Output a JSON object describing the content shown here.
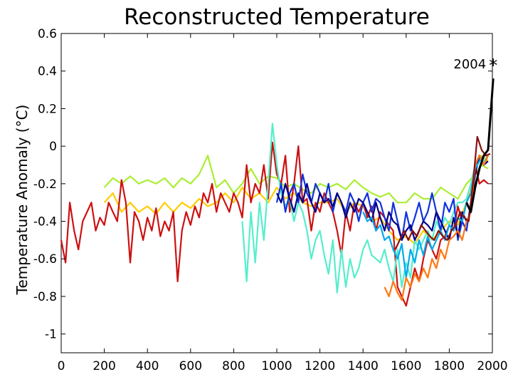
{
  "chart_data": {
    "type": "line",
    "title": "Reconstructed Temperature",
    "xlabel": "",
    "ylabel": "Temperature Anomaly (°C)",
    "xlim": [
      0,
      2000
    ],
    "ylim": [
      -1.1,
      0.6
    ],
    "xticks": [
      0,
      200,
      400,
      600,
      800,
      1000,
      1200,
      1400,
      1600,
      1800,
      2000
    ],
    "yticks": [
      0.6,
      0.4,
      0.2,
      0,
      -0.2,
      -0.4,
      -0.6,
      -0.8,
      -1
    ],
    "grid": false,
    "annotation": {
      "text": "2004",
      "marker": "*",
      "x": 2004,
      "y": 0.44
    },
    "series": [
      {
        "color": "#aaee33",
        "x": [
          200,
          240,
          280,
          320,
          360,
          400,
          440,
          480,
          520,
          560,
          600,
          640,
          680,
          720,
          760,
          800,
          840,
          880,
          920,
          960,
          1000,
          1040,
          1080,
          1120,
          1160,
          1200,
          1240,
          1280,
          1320,
          1360,
          1400,
          1440,
          1480,
          1520,
          1560,
          1600,
          1640,
          1680,
          1720,
          1760,
          1800,
          1840,
          1880,
          1920,
          1950,
          1980
        ],
        "y": [
          -0.22,
          -0.17,
          -0.2,
          -0.16,
          -0.2,
          -0.18,
          -0.2,
          -0.17,
          -0.22,
          -0.17,
          -0.2,
          -0.15,
          -0.05,
          -0.22,
          -0.18,
          -0.25,
          -0.2,
          -0.12,
          -0.2,
          -0.16,
          -0.17,
          -0.22,
          -0.2,
          -0.23,
          -0.25,
          -0.2,
          -0.22,
          -0.2,
          -0.23,
          -0.18,
          -0.22,
          -0.25,
          -0.27,
          -0.25,
          -0.3,
          -0.3,
          -0.25,
          -0.28,
          -0.28,
          -0.22,
          -0.25,
          -0.28,
          -0.2,
          -0.15,
          -0.1,
          -0.12
        ]
      },
      {
        "color": "#ffcc00",
        "x": [
          200,
          240,
          280,
          320,
          360,
          400,
          440,
          480,
          520,
          560,
          600,
          640,
          680,
          720,
          760,
          800,
          840,
          880,
          920,
          960,
          1000,
          1040,
          1080,
          1120,
          1160,
          1200,
          1240,
          1280,
          1320,
          1360,
          1400,
          1440,
          1480,
          1520,
          1560,
          1600,
          1640,
          1680,
          1720,
          1760,
          1800,
          1840,
          1880,
          1920,
          1950,
          1980
        ],
        "y": [
          -0.3,
          -0.25,
          -0.35,
          -0.3,
          -0.35,
          -0.32,
          -0.36,
          -0.3,
          -0.35,
          -0.3,
          -0.33,
          -0.28,
          -0.32,
          -0.3,
          -0.25,
          -0.3,
          -0.22,
          -0.28,
          -0.25,
          -0.3,
          -0.22,
          -0.28,
          -0.25,
          -0.3,
          -0.32,
          -0.3,
          -0.3,
          -0.28,
          -0.35,
          -0.3,
          -0.32,
          -0.4,
          -0.38,
          -0.45,
          -0.5,
          -0.48,
          -0.52,
          -0.45,
          -0.5,
          -0.45,
          -0.4,
          -0.42,
          -0.3,
          -0.1,
          -0.05,
          -0.08
        ]
      },
      {
        "color": "#cc1111",
        "x": [
          0,
          20,
          40,
          60,
          80,
          100,
          120,
          140,
          160,
          180,
          200,
          220,
          240,
          260,
          280,
          300,
          320,
          340,
          360,
          380,
          400,
          420,
          440,
          460,
          480,
          500,
          520,
          540,
          560,
          580,
          600,
          620,
          640,
          660,
          680,
          700,
          720,
          740,
          760,
          780,
          800,
          820,
          840,
          860,
          880,
          900,
          920,
          940,
          960,
          980,
          1000,
          1020,
          1040,
          1060,
          1080,
          1100,
          1120,
          1140,
          1160,
          1180,
          1200,
          1220,
          1240,
          1260,
          1280,
          1300,
          1320,
          1340,
          1360,
          1380,
          1400,
          1420,
          1440,
          1460,
          1480,
          1500,
          1520,
          1540,
          1560,
          1580,
          1600,
          1620,
          1640,
          1660,
          1680,
          1700,
          1720,
          1740,
          1760,
          1780,
          1800,
          1820,
          1840,
          1860,
          1880,
          1900,
          1920,
          1940,
          1960,
          1980
        ],
        "y": [
          -0.5,
          -0.62,
          -0.3,
          -0.45,
          -0.55,
          -0.4,
          -0.35,
          -0.3,
          -0.45,
          -0.38,
          -0.42,
          -0.3,
          -0.35,
          -0.4,
          -0.18,
          -0.3,
          -0.62,
          -0.35,
          -0.4,
          -0.5,
          -0.38,
          -0.45,
          -0.33,
          -0.48,
          -0.4,
          -0.45,
          -0.35,
          -0.72,
          -0.45,
          -0.35,
          -0.42,
          -0.32,
          -0.38,
          -0.25,
          -0.3,
          -0.2,
          -0.35,
          -0.25,
          -0.3,
          -0.35,
          -0.25,
          -0.3,
          -0.38,
          -0.1,
          -0.3,
          -0.2,
          -0.25,
          -0.1,
          -0.28,
          0.02,
          -0.15,
          -0.2,
          -0.05,
          -0.35,
          -0.2,
          0.0,
          -0.3,
          -0.28,
          -0.45,
          -0.3,
          -0.35,
          -0.25,
          -0.3,
          -0.35,
          -0.45,
          -0.58,
          -0.35,
          -0.45,
          -0.3,
          -0.35,
          -0.3,
          -0.38,
          -0.32,
          -0.45,
          -0.35,
          -0.38,
          -0.42,
          -0.45,
          -0.75,
          -0.8,
          -0.85,
          -0.75,
          -0.65,
          -0.72,
          -0.6,
          -0.5,
          -0.55,
          -0.6,
          -0.5,
          -0.48,
          -0.42,
          -0.45,
          -0.32,
          -0.4,
          -0.3,
          -0.25,
          -0.1,
          -0.2,
          -0.18,
          -0.2
        ]
      },
      {
        "color": "#55eecc",
        "x": [
          840,
          860,
          880,
          900,
          920,
          940,
          960,
          980,
          1000,
          1020,
          1040,
          1060,
          1080,
          1100,
          1120,
          1140,
          1160,
          1180,
          1200,
          1220,
          1240,
          1260,
          1280,
          1300,
          1320,
          1340,
          1360,
          1380,
          1400,
          1420,
          1440,
          1460,
          1480,
          1500,
          1520,
          1540,
          1560,
          1580,
          1600,
          1620,
          1640,
          1660,
          1680,
          1700,
          1720,
          1740,
          1760,
          1780,
          1800,
          1820,
          1840,
          1860,
          1880,
          1900,
          1920,
          1940,
          1960,
          1980
        ],
        "y": [
          -0.4,
          -0.72,
          -0.35,
          -0.62,
          -0.3,
          -0.5,
          -0.2,
          0.12,
          -0.1,
          -0.25,
          -0.32,
          -0.28,
          -0.4,
          -0.3,
          -0.35,
          -0.45,
          -0.6,
          -0.5,
          -0.45,
          -0.58,
          -0.68,
          -0.5,
          -0.78,
          -0.55,
          -0.75,
          -0.6,
          -0.7,
          -0.65,
          -0.55,
          -0.5,
          -0.58,
          -0.6,
          -0.62,
          -0.55,
          -0.65,
          -0.72,
          -0.55,
          -0.75,
          -0.62,
          -0.7,
          -0.5,
          -0.55,
          -0.5,
          -0.45,
          -0.5,
          -0.4,
          -0.45,
          -0.38,
          -0.42,
          -0.35,
          -0.3,
          -0.3,
          -0.28,
          -0.2,
          -0.1,
          -0.05,
          -0.08,
          -0.05
        ]
      },
      {
        "color": "#1133dd",
        "x": [
          1000,
          1020,
          1040,
          1060,
          1080,
          1100,
          1120,
          1140,
          1160,
          1180,
          1200,
          1220,
          1240,
          1260,
          1280,
          1300,
          1320,
          1340,
          1360,
          1380,
          1400,
          1420,
          1440,
          1460,
          1480,
          1500,
          1520,
          1540,
          1560,
          1580,
          1600,
          1620,
          1640,
          1660,
          1680,
          1700,
          1720,
          1740,
          1760,
          1780,
          1800,
          1820,
          1840,
          1860,
          1880,
          1900,
          1920,
          1940,
          1960,
          1980
        ],
        "y": [
          -0.3,
          -0.2,
          -0.35,
          -0.25,
          -0.2,
          -0.3,
          -0.15,
          -0.25,
          -0.3,
          -0.2,
          -0.25,
          -0.3,
          -0.2,
          -0.35,
          -0.25,
          -0.3,
          -0.35,
          -0.25,
          -0.3,
          -0.4,
          -0.3,
          -0.25,
          -0.35,
          -0.28,
          -0.3,
          -0.38,
          -0.45,
          -0.3,
          -0.4,
          -0.5,
          -0.35,
          -0.45,
          -0.38,
          -0.3,
          -0.4,
          -0.35,
          -0.25,
          -0.35,
          -0.45,
          -0.3,
          -0.35,
          -0.28,
          -0.5,
          -0.4,
          -0.45,
          -0.3,
          -0.1,
          -0.05,
          -0.1,
          -0.05
        ]
      },
      {
        "color": "#000088",
        "x": [
          1000,
          1020,
          1040,
          1060,
          1080,
          1100,
          1120,
          1140,
          1160,
          1180,
          1200,
          1220,
          1240,
          1260,
          1280,
          1300,
          1320,
          1340,
          1360,
          1380,
          1400,
          1420,
          1440,
          1460,
          1480,
          1500,
          1520,
          1540,
          1560,
          1580,
          1600,
          1620,
          1640,
          1660,
          1680,
          1700,
          1720,
          1740,
          1760,
          1780,
          1800,
          1820,
          1840,
          1860,
          1880,
          1900,
          1920,
          1940,
          1960,
          1980
        ],
        "y": [
          -0.25,
          -0.3,
          -0.2,
          -0.28,
          -0.35,
          -0.25,
          -0.3,
          -0.2,
          -0.3,
          -0.35,
          -0.25,
          -0.3,
          -0.28,
          -0.32,
          -0.25,
          -0.3,
          -0.38,
          -0.3,
          -0.35,
          -0.28,
          -0.3,
          -0.35,
          -0.4,
          -0.3,
          -0.38,
          -0.45,
          -0.35,
          -0.4,
          -0.42,
          -0.5,
          -0.45,
          -0.42,
          -0.5,
          -0.45,
          -0.4,
          -0.42,
          -0.45,
          -0.35,
          -0.4,
          -0.45,
          -0.5,
          -0.38,
          -0.48,
          -0.35,
          -0.4,
          -0.35,
          -0.15,
          -0.05,
          -0.1,
          -0.08
        ]
      },
      {
        "color": "#00aaee",
        "x": [
          1400,
          1420,
          1440,
          1460,
          1480,
          1500,
          1520,
          1540,
          1560,
          1580,
          1600,
          1620,
          1640,
          1660,
          1680,
          1700,
          1720,
          1740,
          1760,
          1780,
          1800,
          1820,
          1840,
          1860,
          1880,
          1900,
          1920,
          1940,
          1960,
          1980
        ],
        "y": [
          -0.35,
          -0.4,
          -0.38,
          -0.45,
          -0.42,
          -0.5,
          -0.48,
          -0.55,
          -0.6,
          -0.52,
          -0.7,
          -0.55,
          -0.62,
          -0.5,
          -0.58,
          -0.48,
          -0.55,
          -0.5,
          -0.45,
          -0.5,
          -0.42,
          -0.45,
          -0.38,
          -0.4,
          -0.3,
          -0.25,
          -0.12,
          -0.08,
          -0.05,
          -0.05
        ]
      },
      {
        "color": "#ff7711",
        "x": [
          1500,
          1520,
          1540,
          1560,
          1580,
          1600,
          1620,
          1640,
          1660,
          1680,
          1700,
          1720,
          1740,
          1760,
          1780,
          1800,
          1820,
          1840,
          1860,
          1880,
          1900,
          1920,
          1940,
          1960,
          1980
        ],
        "y": [
          -0.75,
          -0.8,
          -0.72,
          -0.78,
          -0.82,
          -0.7,
          -0.75,
          -0.68,
          -0.72,
          -0.65,
          -0.7,
          -0.6,
          -0.65,
          -0.55,
          -0.6,
          -0.5,
          -0.48,
          -0.45,
          -0.5,
          -0.4,
          -0.35,
          -0.1,
          -0.05,
          -0.1,
          -0.05
        ]
      },
      {
        "color": "#881111",
        "x": [
          1550,
          1570,
          1590,
          1610,
          1630,
          1650,
          1670,
          1690,
          1710,
          1730,
          1750,
          1770,
          1790,
          1810,
          1830,
          1850,
          1870,
          1890,
          1910,
          1930,
          1950,
          1970,
          1990
        ],
        "y": [
          -0.55,
          -0.5,
          -0.45,
          -0.5,
          -0.45,
          -0.48,
          -0.42,
          -0.45,
          -0.48,
          -0.5,
          -0.45,
          -0.48,
          -0.5,
          -0.45,
          -0.42,
          -0.35,
          -0.38,
          -0.4,
          -0.2,
          0.05,
          -0.02,
          -0.05,
          -0.04
        ]
      },
      {
        "color": "#000000",
        "width": 3,
        "x": [
          1880,
          1900,
          1920,
          1940,
          1960,
          1980,
          2004
        ],
        "y": [
          -0.3,
          -0.35,
          -0.22,
          -0.12,
          -0.05,
          -0.02,
          0.36
        ]
      }
    ]
  }
}
